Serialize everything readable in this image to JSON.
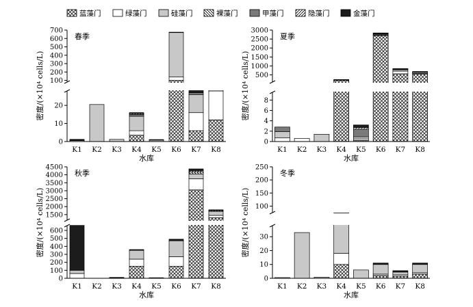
{
  "legend": [
    {
      "name": "蓝藻门",
      "style": "cross"
    },
    {
      "name": "绿藻门",
      "style": "white"
    },
    {
      "name": "硅藻门",
      "style": "light"
    },
    {
      "name": "裸藻门",
      "style": "diag_back"
    },
    {
      "name": "甲藻门",
      "style": "dark"
    },
    {
      "name": "隐藻门",
      "style": "diag_fwd"
    },
    {
      "name": "金藻门",
      "style": "black"
    }
  ],
  "styles": {
    "light_fill": "#c8c8c8",
    "dark_fill": "#7a7a7a",
    "black_fill": "#1c1c1c",
    "cross_pattern_color": "#222222"
  },
  "chart_data": [
    {
      "type": "bar",
      "stacked": true,
      "title": "春季",
      "xlabel": "水库",
      "ylabel": "密度/(×10⁴ cells/L)",
      "categories": [
        "K1",
        "K2",
        "K3",
        "K4",
        "K5",
        "K6",
        "K7",
        "K8"
      ],
      "axis_break": true,
      "lower_range": [
        0,
        28
      ],
      "upper_range": [
        80,
        700
      ],
      "lower_ticks": [
        0,
        10,
        20
      ],
      "upper_ticks": [
        100,
        200,
        300,
        400,
        500,
        600,
        700
      ],
      "series": [
        {
          "name": "蓝藻门",
          "values": [
            0,
            0,
            0,
            3.5,
            0,
            100,
            6,
            12
          ]
        },
        {
          "name": "绿藻门",
          "values": [
            0.5,
            0,
            0,
            2.5,
            0,
            40,
            10,
            16
          ]
        },
        {
          "name": "硅藻门",
          "values": [
            0,
            20.5,
            1.2,
            8,
            0.8,
            530,
            10,
            10
          ]
        },
        {
          "name": "裸藻门",
          "values": [
            0,
            0,
            0,
            0,
            0,
            0,
            0,
            2
          ]
        },
        {
          "name": "甲藻门",
          "values": [
            0.3,
            0,
            0,
            1,
            0.3,
            0,
            1,
            10
          ]
        },
        {
          "name": "隐藻门",
          "values": [
            0,
            0,
            0,
            0.5,
            0,
            0,
            0,
            3
          ]
        },
        {
          "name": "金藻门",
          "values": [
            0.4,
            0,
            0,
            0.5,
            0,
            5,
            3,
            2
          ]
        }
      ]
    },
    {
      "type": "bar",
      "stacked": true,
      "title": "夏季",
      "xlabel": "水库",
      "ylabel": "密度/(×10⁴ cells/L)",
      "categories": [
        "K1",
        "K2",
        "K3",
        "K4",
        "K5",
        "K6",
        "K7",
        "K8"
      ],
      "axis_break": true,
      "lower_range": [
        0,
        9.5
      ],
      "upper_range": [
        100,
        3000
      ],
      "lower_ticks": [
        0,
        2,
        4,
        6,
        8
      ],
      "upper_ticks": [
        500,
        1000,
        1500,
        2000,
        2500,
        3000
      ],
      "series": [
        {
          "name": "蓝藻门",
          "values": [
            0,
            0,
            0,
            200,
            0.2,
            2700,
            560,
            550
          ]
        },
        {
          "name": "绿藻门",
          "values": [
            0.7,
            0.6,
            0,
            0,
            0.3,
            0,
            150,
            0
          ]
        },
        {
          "name": "硅藻门",
          "values": [
            1.2,
            0,
            1.4,
            10,
            0.4,
            30,
            80,
            20
          ]
        },
        {
          "name": "裸藻门",
          "values": [
            0,
            0,
            0,
            0,
            0,
            0,
            30,
            0
          ]
        },
        {
          "name": "甲藻门",
          "values": [
            0.9,
            0,
            0,
            30,
            1.5,
            50,
            20,
            90
          ]
        },
        {
          "name": "隐藻门",
          "values": [
            0,
            0,
            0,
            0,
            0.3,
            0,
            0,
            0
          ]
        },
        {
          "name": "金藻门",
          "values": [
            0,
            0,
            0,
            0,
            0.5,
            60,
            10,
            30
          ]
        }
      ]
    },
    {
      "type": "bar",
      "stacked": true,
      "title": "秋季",
      "xlabel": "水库",
      "ylabel": "密度/(×10⁴ cells/L)",
      "categories": [
        "K1",
        "K2",
        "K3",
        "K4",
        "K5",
        "K6",
        "K7",
        "K8"
      ],
      "axis_break": true,
      "lower_range": [
        0,
        660
      ],
      "upper_range": [
        1150,
        4500
      ],
      "lower_ticks": [
        0,
        100,
        200,
        300,
        400,
        500,
        600
      ],
      "upper_ticks": [
        1500,
        2000,
        2500,
        3000,
        3500,
        4000,
        4500
      ],
      "series": [
        {
          "name": "蓝藻门",
          "values": [
            0,
            0,
            0,
            150,
            0,
            150,
            3050,
            1300
          ]
        },
        {
          "name": "绿藻门",
          "values": [
            60,
            0,
            3,
            90,
            2,
            120,
            700,
            150
          ]
        },
        {
          "name": "硅藻门",
          "values": [
            40,
            0,
            5,
            110,
            3,
            200,
            300,
            250
          ]
        },
        {
          "name": "裸藻门",
          "values": [
            0,
            0,
            0,
            0,
            0,
            0,
            120,
            50
          ]
        },
        {
          "name": "甲藻门",
          "values": [
            0,
            0,
            0,
            0,
            0,
            0,
            0,
            0
          ]
        },
        {
          "name": "隐藻门",
          "values": [
            0,
            0,
            0,
            0,
            0,
            0,
            80,
            30
          ]
        },
        {
          "name": "金藻门",
          "values": [
            580,
            0,
            3,
            10,
            2,
            20,
            120,
            20
          ]
        }
      ]
    },
    {
      "type": "bar",
      "stacked": true,
      "title": "冬季",
      "xlabel": "水库",
      "ylabel": "密度/(×10⁴ cells/L)",
      "categories": [
        "K1",
        "K2",
        "K3",
        "K4",
        "K5",
        "K6",
        "K7",
        "K8"
      ],
      "axis_break": true,
      "lower_range": [
        0,
        38
      ],
      "upper_range": [
        75,
        250
      ],
      "lower_ticks": [
        0,
        10,
        20,
        30
      ],
      "upper_ticks": [
        100,
        150,
        200,
        250
      ],
      "series": [
        {
          "name": "蓝藻门",
          "values": [
            0,
            0,
            0,
            10,
            0,
            2,
            1.5,
            3
          ]
        },
        {
          "name": "绿藻门",
          "values": [
            0.5,
            0,
            0,
            8,
            0,
            1,
            1,
            1
          ]
        },
        {
          "name": "硅藻门",
          "values": [
            0,
            33,
            0.8,
            50,
            6,
            7,
            2,
            6
          ]
        },
        {
          "name": "裸藻门",
          "values": [
            0,
            0,
            0,
            0,
            0,
            0,
            0,
            0
          ]
        },
        {
          "name": "甲藻门",
          "values": [
            0,
            0,
            0,
            2,
            0,
            0,
            0,
            0
          ]
        },
        {
          "name": "隐藻门",
          "values": [
            0,
            0,
            0,
            0,
            0,
            0,
            0,
            0
          ]
        },
        {
          "name": "金藻门",
          "values": [
            0,
            0,
            0,
            4,
            0,
            1,
            1,
            1
          ]
        }
      ]
    }
  ]
}
